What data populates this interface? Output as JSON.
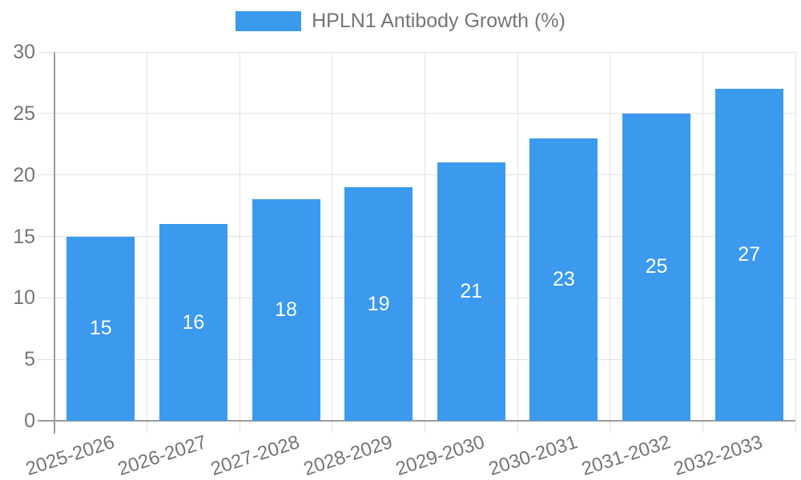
{
  "legend": {
    "items": [
      {
        "label": "HPLN1 Antibody Growth (%)",
        "color": "#3b99ee"
      }
    ]
  },
  "chart_data": {
    "type": "bar",
    "title": "HPLN1 Antibody Growth (%)",
    "categories": [
      "2025-2026",
      "2026-2027",
      "2027-2028",
      "2028-2029",
      "2029-2030",
      "2030-2031",
      "2031-2032",
      "2032-2033"
    ],
    "values": [
      15,
      16,
      18,
      19,
      21,
      23,
      25,
      27
    ],
    "xlabel": "",
    "ylabel": "",
    "ylim": [
      0,
      30
    ],
    "yticks": [
      0,
      5,
      10,
      15,
      20,
      25,
      30
    ],
    "grid": true,
    "legend_position": "top-center",
    "x_tick_rotation_deg": -18,
    "colors": {
      "bar": "#3b99ee",
      "value_label": "#ffffff",
      "axis_line": "#9c9c9c",
      "gridline": "#e2e2e2",
      "tick_text": "#757575",
      "background": "#ffffff"
    }
  }
}
